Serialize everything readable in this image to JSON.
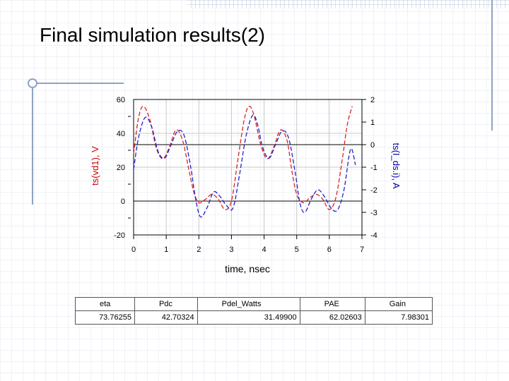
{
  "slide": {
    "title": "Final simulation results(2)"
  },
  "chart_data": {
    "type": "line",
    "xlabel": "time, nsec",
    "ylabel_left": "ts(vd1), V",
    "ylabel_right": "ts(I_ds.i), A",
    "xlim": [
      0,
      7
    ],
    "ylim_left": [
      -20,
      60
    ],
    "ylim_right": [
      -4,
      2
    ],
    "x_ticks": [
      0,
      1,
      2,
      3,
      4,
      5,
      6,
      7
    ],
    "y_left_ticks": [
      -20,
      0,
      20,
      40,
      60
    ],
    "y_right_ticks": [
      -4,
      -3,
      -2,
      -1,
      0,
      1,
      2
    ],
    "grid": true,
    "colors": {
      "red": "#dd2222",
      "blue": "#2222cc"
    },
    "series": [
      {
        "axis": "left",
        "color": "#dd2222",
        "x": [
          0,
          0.15,
          0.3,
          0.5,
          0.7,
          0.9,
          1.1,
          1.3,
          1.5,
          1.7,
          1.85,
          2.0,
          2.2,
          2.4,
          2.6,
          2.8,
          3.0,
          3.2,
          3.4,
          3.55,
          3.7,
          3.9,
          4.1,
          4.3,
          4.5,
          4.7,
          4.85,
          5.0,
          5.2,
          5.4,
          5.6,
          5.8,
          6.0,
          6.2,
          6.4,
          6.55,
          6.7
        ],
        "y": [
          28,
          49,
          56,
          48,
          31,
          25,
          32,
          42,
          36,
          18,
          5,
          -1,
          1,
          4,
          1,
          -5,
          0,
          25,
          49,
          56,
          50,
          33,
          25,
          32,
          42,
          36,
          18,
          4,
          -1,
          2,
          4,
          1,
          -5,
          2,
          25,
          45,
          56
        ]
      },
      {
        "axis": "right",
        "color": "#2222cc",
        "x": [
          0,
          0.15,
          0.35,
          0.55,
          0.75,
          0.95,
          1.15,
          1.35,
          1.55,
          1.75,
          1.9,
          2.05,
          2.25,
          2.45,
          2.65,
          2.85,
          3.05,
          3.25,
          3.45,
          3.65,
          3.8,
          3.95,
          4.15,
          4.35,
          4.55,
          4.75,
          4.95,
          5.1,
          5.25,
          5.45,
          5.65,
          5.85,
          6.05,
          6.25,
          6.45,
          6.65,
          6.8
        ],
        "y": [
          -1.1,
          0.3,
          1.2,
          0.8,
          -0.3,
          -0.6,
          0.0,
          0.6,
          0.4,
          -1.0,
          -2.4,
          -3.2,
          -2.8,
          -2.1,
          -2.3,
          -2.7,
          -2.8,
          -1.3,
          0.4,
          1.3,
          0.9,
          -0.1,
          -0.6,
          0.0,
          0.6,
          0.3,
          -1.2,
          -2.6,
          -3.0,
          -2.4,
          -2.0,
          -2.3,
          -2.8,
          -2.9,
          -2.0,
          -0.2,
          -0.9
        ]
      }
    ]
  },
  "table": {
    "headers": [
      "eta",
      "Pdc",
      "Pdel_Watts",
      "PAE",
      "Gain"
    ],
    "values": [
      "73.76255",
      "42.70324",
      "31.49900",
      "62.02603",
      "7.98301"
    ]
  }
}
